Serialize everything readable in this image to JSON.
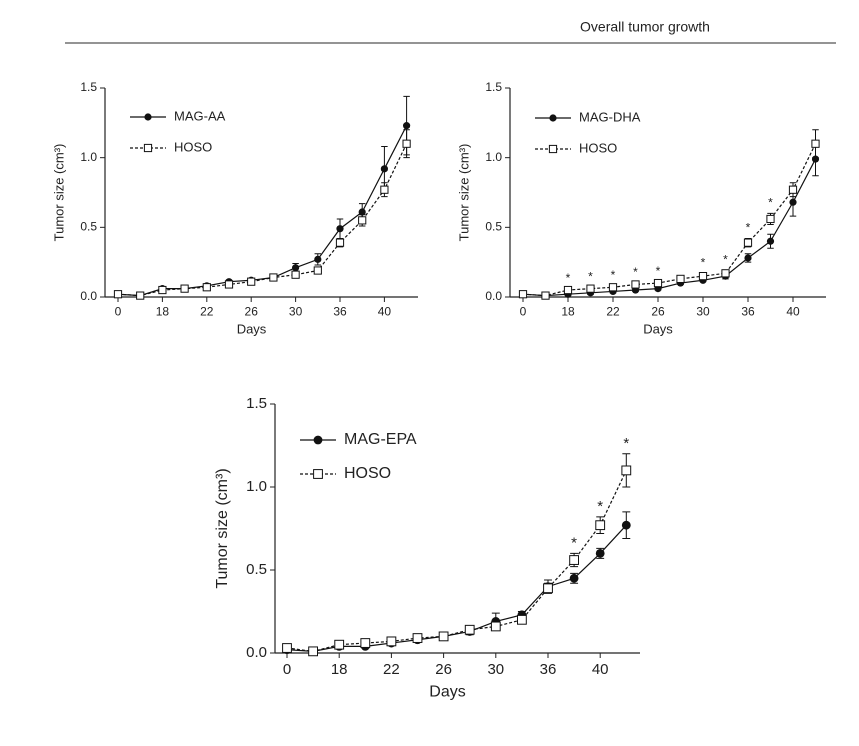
{
  "header": {
    "title": "Overall tumor growth"
  },
  "chart_data": [
    {
      "type": "line",
      "categories": [
        "0",
        null,
        "18",
        null,
        "22",
        null,
        "26",
        null,
        "30",
        null,
        "36",
        null,
        "40",
        null
      ],
      "series": [
        {
          "name": "MAG-AA",
          "color": "#111111",
          "marker": "circle",
          "line_style": "solid",
          "values": [
            0.02,
            0.01,
            0.06,
            0.06,
            0.08,
            0.11,
            0.12,
            0.14,
            0.21,
            0.27,
            0.49,
            0.61,
            0.92,
            1.23
          ],
          "errors": [
            0.01,
            0.01,
            0.01,
            0.01,
            0.01,
            0.01,
            0.01,
            0.01,
            0.03,
            0.04,
            0.07,
            0.06,
            0.16,
            0.21
          ]
        },
        {
          "name": "HOSO",
          "color": "#111111",
          "marker": "square",
          "line_style": "dashed",
          "values": [
            0.02,
            0.01,
            0.05,
            0.06,
            0.07,
            0.09,
            0.11,
            0.14,
            0.16,
            0.19,
            0.39,
            0.55,
            0.77,
            1.1
          ],
          "errors": [
            0.01,
            0.01,
            0.01,
            0.01,
            0.01,
            0.01,
            0.01,
            0.01,
            0.02,
            0.02,
            0.03,
            0.04,
            0.05,
            0.1
          ]
        }
      ],
      "x_label": "Days",
      "y_label": "Tumor size (cm³)",
      "ylim": [
        0,
        1.5
      ],
      "yticks": [
        {
          "value": 0,
          "label": "0.0"
        },
        0.5,
        {
          "value": 1,
          "label": "1.0"
        },
        1.5
      ]
    },
    {
      "type": "line",
      "categories": [
        "0",
        null,
        "18",
        null,
        "22",
        null,
        "26",
        null,
        "30",
        null,
        "36",
        null,
        "40",
        null
      ],
      "series": [
        {
          "name": "MAG-DHA",
          "color": "#111111",
          "marker": "circle",
          "line_style": "solid",
          "values": [
            0.02,
            0.01,
            0.02,
            0.03,
            0.04,
            0.05,
            0.06,
            0.1,
            0.12,
            0.15,
            0.28,
            0.4,
            0.68,
            0.99
          ],
          "errors": [
            0.01,
            0.01,
            0.01,
            0.01,
            0.01,
            0.01,
            0.01,
            0.01,
            0.01,
            0.02,
            0.03,
            0.05,
            0.1,
            0.12
          ]
        },
        {
          "name": "HOSO",
          "color": "#111111",
          "marker": "square",
          "line_style": "dashed",
          "values": [
            0.02,
            0.01,
            0.05,
            0.06,
            0.07,
            0.09,
            0.1,
            0.13,
            0.15,
            0.17,
            0.39,
            0.56,
            0.77,
            1.1
          ],
          "errors": [
            0.01,
            0.01,
            0.01,
            0.01,
            0.01,
            0.01,
            0.01,
            0.02,
            0.02,
            0.02,
            0.03,
            0.04,
            0.05,
            0.1
          ]
        }
      ],
      "annotations": [
        null,
        null,
        "*",
        "*",
        "*",
        "*",
        "*",
        null,
        "*",
        "*",
        "*",
        "*",
        null,
        null
      ],
      "x_label": "Days",
      "y_label": "Tumor size (cm³)",
      "ylim": [
        0,
        1.5
      ],
      "yticks": [
        {
          "value": 0,
          "label": "0.0"
        },
        0.5,
        {
          "value": 1,
          "label": "1.0"
        },
        1.5
      ]
    },
    {
      "type": "line",
      "categories": [
        "0",
        null,
        "18",
        null,
        "22",
        null,
        "26",
        null,
        "30",
        null,
        "36",
        null,
        "40",
        null
      ],
      "series": [
        {
          "name": "MAG-EPA",
          "color": "#111111",
          "marker": "circle",
          "line_style": "solid",
          "values": [
            0.02,
            0.01,
            0.04,
            0.04,
            0.06,
            0.08,
            0.1,
            0.13,
            0.19,
            0.23,
            0.4,
            0.45,
            0.6,
            0.77
          ],
          "errors": [
            0.01,
            0.01,
            0.01,
            0.01,
            0.01,
            0.01,
            0.01,
            0.02,
            0.05,
            0.02,
            0.04,
            0.03,
            0.03,
            0.08
          ]
        },
        {
          "name": "HOSO",
          "color": "#111111",
          "marker": "square",
          "line_style": "dashed",
          "values": [
            0.03,
            0.01,
            0.05,
            0.06,
            0.07,
            0.09,
            0.1,
            0.14,
            0.16,
            0.2,
            0.39,
            0.56,
            0.77,
            1.1
          ],
          "errors": [
            0.01,
            0.01,
            0.01,
            0.01,
            0.01,
            0.01,
            0.01,
            0.02,
            0.02,
            0.02,
            0.03,
            0.04,
            0.05,
            0.1
          ]
        }
      ],
      "annotations": [
        null,
        null,
        null,
        null,
        null,
        null,
        null,
        null,
        null,
        null,
        null,
        "*",
        "*",
        "*"
      ],
      "x_label": "Days",
      "y_label": "Tumor size (cm³)",
      "ylim": [
        0,
        1.5
      ],
      "yticks": [
        {
          "value": 0,
          "label": "0.0"
        },
        0.5,
        {
          "value": 1,
          "label": "1.0"
        },
        1.5
      ]
    }
  ]
}
